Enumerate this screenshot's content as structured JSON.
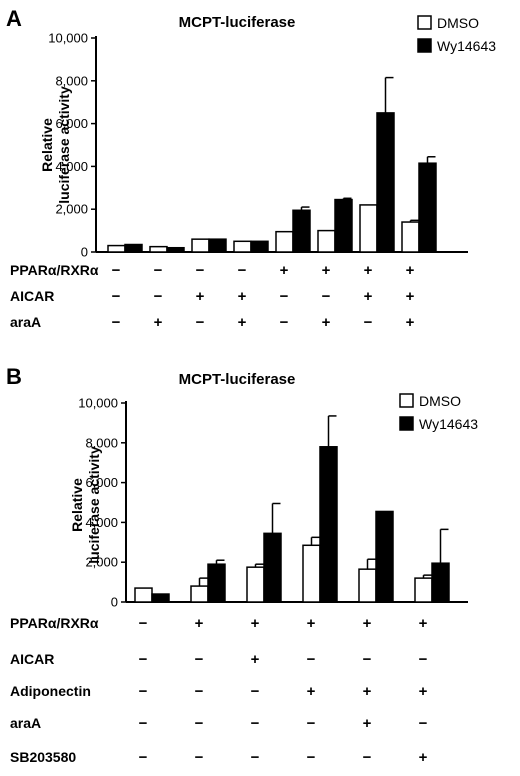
{
  "chart_data": [
    {
      "panel": "A",
      "type": "bar",
      "title": "MCPT-luciferase",
      "ylabel": "Relative luciferase activity",
      "ylabel_lines": [
        "Relative",
        "luciferase activity"
      ],
      "ylim": [
        0,
        10000
      ],
      "yticks": [
        0,
        2000,
        4000,
        6000,
        8000,
        10000
      ],
      "ytick_labels": [
        "0",
        "2,000",
        "4,000",
        "6,000",
        "8,000",
        "10,000"
      ],
      "legend": "top-right",
      "series": [
        {
          "name": "DMSO",
          "color": "#ffffff",
          "values": [
            300,
            250,
            600,
            500,
            950,
            1000,
            2200,
            1400
          ],
          "errors": [
            0,
            0,
            0,
            0,
            0,
            0,
            0,
            80
          ]
        },
        {
          "name": "Wy14643",
          "color": "#000000",
          "values": [
            350,
            200,
            600,
            500,
            1950,
            2450,
            6500,
            4150
          ],
          "errors": [
            0,
            0,
            0,
            0,
            150,
            60,
            1650,
            300
          ]
        }
      ],
      "conditions": [
        {
          "label": "PPARα/RXRα",
          "signs": [
            "−",
            "−",
            "−",
            "−",
            "+",
            "+",
            "+",
            "+"
          ]
        },
        {
          "label": "AICAR",
          "signs": [
            "−",
            "−",
            "+",
            "+",
            "−",
            "−",
            "+",
            "+"
          ]
        },
        {
          "label": "araA",
          "signs": [
            "−",
            "+",
            "−",
            "+",
            "−",
            "+",
            "−",
            "+"
          ]
        }
      ]
    },
    {
      "panel": "B",
      "type": "bar",
      "title": "MCPT-luciferase",
      "ylabel": "Relative luciferase activity",
      "ylabel_lines": [
        "Relative",
        "luciferase activity"
      ],
      "ylim": [
        0,
        10000
      ],
      "yticks": [
        0,
        2000,
        4000,
        6000,
        8000,
        10000
      ],
      "ytick_labels": [
        "0",
        "2,000",
        "4,000",
        "6,000",
        "8,000",
        "10,000"
      ],
      "legend": "top-right",
      "series": [
        {
          "name": "DMSO",
          "color": "#ffffff",
          "values": [
            700,
            800,
            1750,
            2850,
            1650,
            1200
          ],
          "errors": [
            0,
            400,
            150,
            400,
            500,
            150
          ]
        },
        {
          "name": "Wy14643",
          "color": "#000000",
          "values": [
            400,
            1900,
            3450,
            7800,
            4550,
            1950
          ],
          "errors": [
            0,
            200,
            1500,
            1550,
            0,
            1700
          ]
        }
      ],
      "conditions": [
        {
          "label": "PPARα/RXRα",
          "signs": [
            "−",
            "+",
            "+",
            "+",
            "+",
            "+"
          ]
        },
        {
          "label": "AICAR",
          "signs": [
            "−",
            "−",
            "+",
            "−",
            "−",
            "−"
          ]
        },
        {
          "label": "Adiponectin",
          "signs": [
            "−",
            "−",
            "−",
            "+",
            "+",
            "+"
          ]
        },
        {
          "label": "araA",
          "signs": [
            "−",
            "−",
            "−",
            "−",
            "+",
            "−"
          ]
        },
        {
          "label": "SB203580",
          "signs": [
            "−",
            "−",
            "−",
            "−",
            "−",
            "+"
          ]
        }
      ]
    }
  ]
}
